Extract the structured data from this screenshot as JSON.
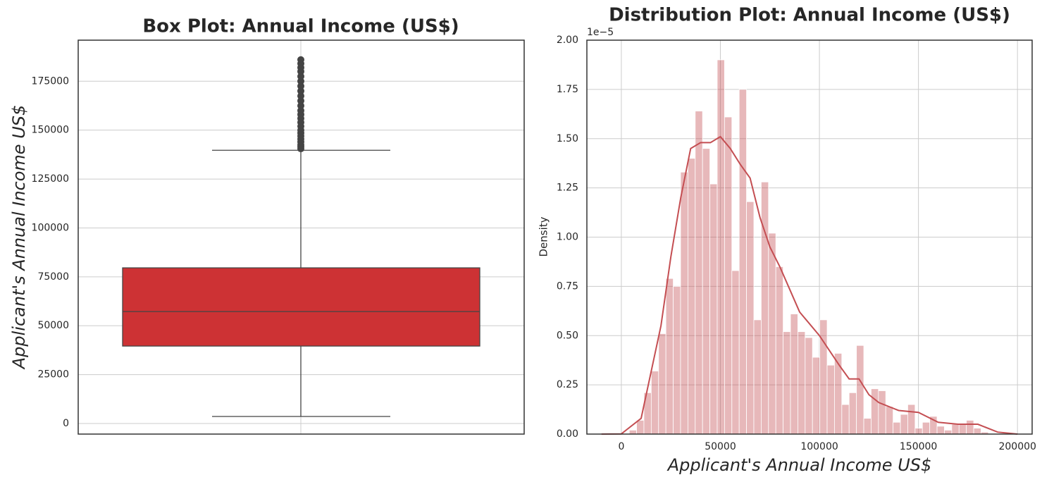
{
  "chart_data": [
    {
      "type": "box",
      "title": "Box Plot: Annual Income (US$)",
      "ylabel": "Applicant's Annual Income US$",
      "ylim": [
        -5400,
        196000
      ],
      "yticks": [
        0,
        25000,
        50000,
        75000,
        100000,
        125000,
        150000,
        175000
      ],
      "grid": true,
      "whisker_low": 3600,
      "q1": 39600,
      "median": 57250,
      "q3": 79600,
      "whisker_high": 139700,
      "outliers": [
        140500,
        141500,
        142500,
        144000,
        145500,
        147000,
        148500,
        150000,
        152000,
        154000,
        156000,
        158000,
        160000,
        162500,
        165000,
        167500,
        170000,
        172500,
        175000,
        177500,
        180000,
        182000,
        184000,
        186000
      ],
      "color": "#cd3234",
      "outlier_color": "#444444"
    },
    {
      "type": "histogram",
      "title": "Distribution Plot: Annual Income (US$)",
      "xlabel": "Applicant's Annual Income US$",
      "ylabel": "Density",
      "y_offset_label": "1e−5",
      "xlim": [
        -17400,
        207400
      ],
      "xticks": [
        0,
        50000,
        100000,
        150000,
        200000
      ],
      "ylim": [
        0,
        2e-05
      ],
      "yticks": [
        {
          "value": 0,
          "label": "0.00"
        },
        {
          "value": 2.5e-06,
          "label": "0.25"
        },
        {
          "value": 5e-06,
          "label": "0.50"
        },
        {
          "value": 7.5e-06,
          "label": "0.75"
        },
        {
          "value": 1e-05,
          "label": "1.00"
        },
        {
          "value": 1.25e-05,
          "label": "1.25"
        },
        {
          "value": 1.5e-05,
          "label": "1.50"
        },
        {
          "value": 1.75e-05,
          "label": "1.75"
        },
        {
          "value": 2e-05,
          "label": "2.00"
        }
      ],
      "grid": true,
      "color": "#c44e52",
      "bins": [
        4000,
        7700,
        11400,
        15100,
        18800,
        22500,
        26200,
        29900,
        33600,
        37300,
        41000,
        44700,
        48400,
        52100,
        55800,
        59500,
        63200,
        66900,
        70600,
        74300,
        78000,
        81700,
        85400,
        89100,
        92800,
        96500,
        100200,
        103900,
        107600,
        111300,
        115000,
        118700,
        122400,
        126100,
        129800,
        133500,
        137200,
        140900,
        144600,
        148300,
        152000,
        155700,
        159400,
        163100,
        166800,
        170500,
        174200,
        177900,
        181600,
        185300
      ],
      "values": [
        2e-07,
        7e-07,
        2.1e-06,
        3.2e-06,
        5.1e-06,
        7.9e-06,
        7.5e-06,
        1.33e-05,
        1.4e-05,
        1.64e-05,
        1.45e-05,
        1.27e-05,
        1.9e-05,
        1.61e-05,
        8.3e-06,
        1.75e-05,
        1.18e-05,
        5.8e-06,
        1.28e-05,
        1.02e-05,
        8.5e-06,
        5.2e-06,
        6.1e-06,
        5.2e-06,
        4.9e-06,
        3.9e-06,
        5.8e-06,
        3.5e-06,
        4.1e-06,
        1.5e-06,
        2.1e-06,
        4.5e-06,
        8e-07,
        2.3e-06,
        2.2e-06,
        1.4e-06,
        6e-07,
        1e-06,
        1.5e-06,
        3e-07,
        6e-07,
        9e-07,
        4e-07,
        2e-07,
        5e-07,
        5e-07,
        7e-07,
        3e-07,
        1e-07
      ],
      "kde": {
        "x": [
          -10000,
          0,
          10000,
          20000,
          25000,
          30000,
          35000,
          40000,
          45000,
          50000,
          55000,
          60000,
          65000,
          70000,
          75000,
          80000,
          90000,
          100000,
          110000,
          115000,
          120000,
          125000,
          130000,
          140000,
          150000,
          160000,
          170000,
          180000,
          190000,
          200000
        ],
        "values": [
          0,
          1e-08,
          8e-07,
          5.5e-06,
          9e-06,
          1.2e-05,
          1.45e-05,
          1.48e-05,
          1.48e-05,
          1.51e-05,
          1.45e-05,
          1.37e-05,
          1.3e-05,
          1.1e-05,
          9.5e-06,
          8.5e-06,
          6.2e-06,
          5e-06,
          3.5e-06,
          2.8e-06,
          2.8e-06,
          2e-06,
          1.6e-06,
          1.2e-06,
          1.1e-06,
          6e-07,
          5e-07,
          5e-07,
          1e-07,
          0
        ],
        "color": "#c44e52"
      }
    }
  ]
}
